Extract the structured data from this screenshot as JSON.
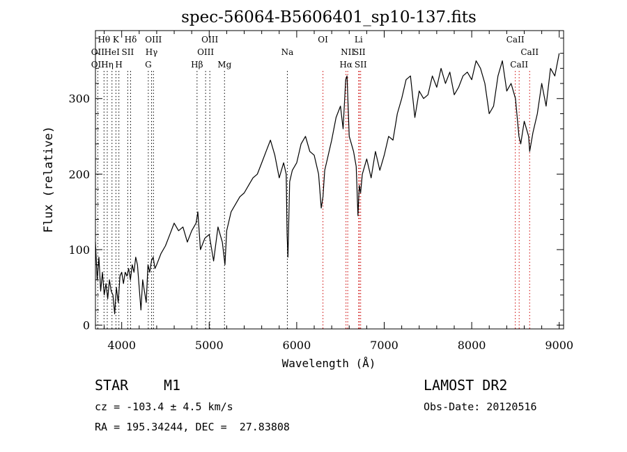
{
  "chart_data": {
    "type": "line",
    "title": "spec-56064-B5606401_sp10-137.fits",
    "xlabel": "Wavelength (Å)",
    "ylabel": "Flux (relative)",
    "xlim": [
      3700,
      9050
    ],
    "ylim": [
      -5,
      390
    ],
    "xticks": [
      4000,
      5000,
      6000,
      7000,
      8000,
      9000
    ],
    "yticks": [
      0,
      100,
      200,
      300
    ],
    "grid": false,
    "series": [
      {
        "x": [
          3700,
          3720,
          3740,
          3760,
          3780,
          3800,
          3820,
          3840,
          3860,
          3880,
          3900,
          3920,
          3940,
          3960,
          3980,
          4000,
          4020,
          4040,
          4060,
          4080,
          4100,
          4120,
          4140,
          4160,
          4180,
          4200,
          4220,
          4240,
          4260,
          4280,
          4300,
          4320,
          4340,
          4360,
          4380,
          4400,
          4450,
          4500,
          4550,
          4600,
          4650,
          4700,
          4750,
          4800,
          4850,
          4870,
          4900,
          4950,
          5000,
          5050,
          5100,
          5150,
          5180,
          5200,
          5250,
          5300,
          5350,
          5400,
          5450,
          5500,
          5550,
          5600,
          5650,
          5700,
          5750,
          5800,
          5850,
          5880,
          5890,
          5900,
          5920,
          5950,
          6000,
          6050,
          6100,
          6150,
          6200,
          6250,
          6280,
          6300,
          6320,
          6350,
          6400,
          6450,
          6500,
          6530,
          6560,
          6575,
          6600,
          6650,
          6680,
          6700,
          6715,
          6730,
          6750,
          6800,
          6850,
          6900,
          6950,
          7000,
          7050,
          7100,
          7150,
          7200,
          7250,
          7300,
          7350,
          7400,
          7450,
          7500,
          7550,
          7600,
          7650,
          7700,
          7750,
          7800,
          7850,
          7900,
          7950,
          8000,
          8050,
          8100,
          8150,
          8200,
          8250,
          8300,
          8350,
          8400,
          8450,
          8500,
          8520,
          8540,
          8560,
          8600,
          8650,
          8662,
          8700,
          8750,
          8800,
          8850,
          8900,
          8950,
          9000
        ],
        "values": [
          110,
          60,
          90,
          45,
          70,
          40,
          55,
          35,
          60,
          45,
          40,
          15,
          50,
          30,
          65,
          70,
          55,
          70,
          65,
          75,
          60,
          80,
          70,
          90,
          80,
          50,
          20,
          60,
          45,
          30,
          80,
          70,
          85,
          90,
          75,
          80,
          95,
          105,
          120,
          135,
          125,
          130,
          110,
          125,
          135,
          150,
          100,
          115,
          120,
          85,
          130,
          110,
          80,
          125,
          150,
          160,
          170,
          175,
          185,
          195,
          200,
          215,
          230,
          245,
          225,
          195,
          215,
          200,
          120,
          90,
          190,
          205,
          215,
          240,
          250,
          230,
          225,
          200,
          155,
          170,
          205,
          220,
          245,
          275,
          290,
          260,
          325,
          330,
          250,
          230,
          210,
          145,
          185,
          175,
          200,
          220,
          195,
          230,
          205,
          225,
          250,
          245,
          280,
          300,
          325,
          330,
          275,
          310,
          300,
          305,
          330,
          315,
          340,
          320,
          335,
          305,
          315,
          330,
          335,
          325,
          350,
          340,
          320,
          280,
          290,
          330,
          350,
          310,
          320,
          300,
          275,
          250,
          240,
          270,
          250,
          230,
          255,
          280,
          320,
          290,
          340,
          330,
          360
        ]
      }
    ],
    "line_labels": [
      {
        "name": "Hθ",
        "x": 3798,
        "row": 1
      },
      {
        "name": "K",
        "x": 3934,
        "row": 1
      },
      {
        "name": "Hδ",
        "x": 4102,
        "row": 1
      },
      {
        "name": "OIII",
        "x": 4363,
        "row": 1
      },
      {
        "name": "OIII",
        "x": 5007,
        "row": 1
      },
      {
        "name": "OI",
        "x": 6300,
        "row": 1
      },
      {
        "name": "Li",
        "x": 6708,
        "row": 1
      },
      {
        "name": "CaII",
        "x": 8498,
        "row": 1
      },
      {
        "name": "OII",
        "x": 3727,
        "row": 2
      },
      {
        "name": "HeI",
        "x": 3889,
        "row": 2
      },
      {
        "name": "SII",
        "x": 4069,
        "row": 2
      },
      {
        "name": "Hγ",
        "x": 4341,
        "row": 2
      },
      {
        "name": "OIII",
        "x": 4959,
        "row": 2
      },
      {
        "name": "Na",
        "x": 5893,
        "row": 2
      },
      {
        "name": "NII",
        "x": 6583,
        "row": 2
      },
      {
        "name": "SII",
        "x": 6716,
        "row": 2
      },
      {
        "name": "CaII",
        "x": 8662,
        "row": 2
      },
      {
        "name": "OII",
        "x": 3727,
        "row": 3
      },
      {
        "name": "Hη",
        "x": 3835,
        "row": 3
      },
      {
        "name": "H",
        "x": 3968,
        "row": 3
      },
      {
        "name": "G",
        "x": 4304,
        "row": 3
      },
      {
        "name": "Hβ",
        "x": 4861,
        "row": 3
      },
      {
        "name": "Mg",
        "x": 5175,
        "row": 3
      },
      {
        "name": "Hα",
        "x": 6563,
        "row": 3
      },
      {
        "name": "SII",
        "x": 6731,
        "row": 3
      },
      {
        "name": "CaII",
        "x": 8542,
        "row": 3
      }
    ],
    "marker_lines": {
      "black": [
        3727,
        3798,
        3835,
        3889,
        3934,
        3968,
        4069,
        4102,
        4304,
        4341,
        4363,
        4861,
        4959,
        5007,
        5175,
        5893
      ],
      "red": [
        6300,
        6563,
        6583,
        6708,
        6716,
        6731,
        8498,
        8542,
        8662
      ]
    },
    "colors": {
      "line": "#000000",
      "marker_black": "#000000",
      "marker_red": "#cc0000"
    }
  },
  "info": {
    "class_label": "STAR",
    "subclass_label": "M1",
    "survey_label": "LAMOST DR2",
    "cz_text": "cz = -103.4 ± 4.5 km/s",
    "obs_date_text": "Obs-Date: 20120516",
    "radec_text": "RA = 195.34244, DEC =  27.83808"
  }
}
